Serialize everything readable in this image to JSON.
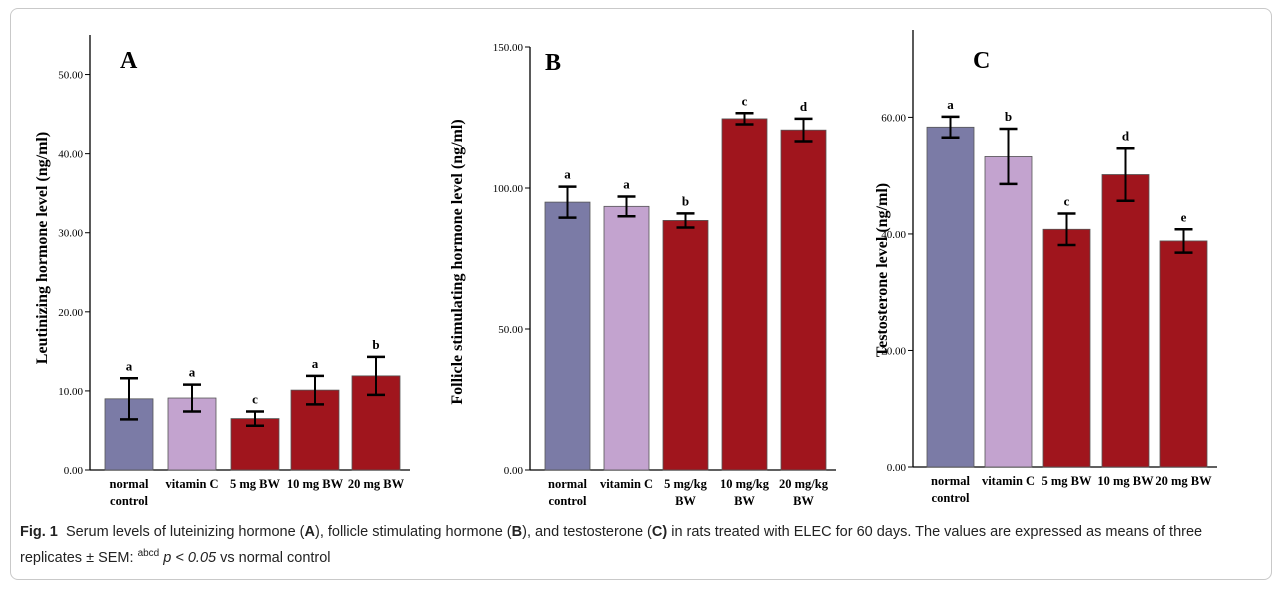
{
  "colors": {
    "normal_control": "#7b7ba6",
    "vitamin_c": "#c3a3cf",
    "treatment": "#a0151d"
  },
  "chart_data": [
    {
      "type": "bar",
      "panel": "A",
      "ylabel": "Leutinizing hormone level  (ng/ml)",
      "ylim": [
        0,
        55
      ],
      "yticks": [
        "0.00",
        "10.00",
        "20.00",
        "30.00",
        "40.00",
        "50.00"
      ],
      "ytick_values": [
        0,
        10,
        20,
        30,
        40,
        50
      ],
      "categories": [
        [
          "normal",
          "control"
        ],
        [
          "vitamin C"
        ],
        [
          "5 mg BW"
        ],
        [
          "10 mg BW"
        ],
        [
          "20 mg BW"
        ]
      ],
      "values": [
        9.0,
        9.1,
        6.5,
        10.1,
        11.9
      ],
      "errors": [
        2.6,
        1.7,
        0.9,
        1.8,
        2.4
      ],
      "letters": [
        "a",
        "a",
        "c",
        "a",
        "b"
      ],
      "color_keys": [
        "normal_control",
        "vitamin_c",
        "treatment",
        "treatment",
        "treatment"
      ]
    },
    {
      "type": "bar",
      "panel": "B",
      "ylabel": "Follicle stimulating hormone level (ng/ml)",
      "ylim": [
        0,
        150
      ],
      "yticks": [
        "0.00",
        "50.00",
        "100.00",
        "150.00"
      ],
      "ytick_values": [
        0,
        50,
        100,
        150
      ],
      "categories": [
        [
          "normal",
          "control"
        ],
        [
          "vitamin C"
        ],
        [
          "5 mg/kg",
          "BW"
        ],
        [
          "10 mg/kg",
          "BW"
        ],
        [
          "20 mg/kg",
          "BW"
        ]
      ],
      "values": [
        95.0,
        93.5,
        88.5,
        124.5,
        120.5
      ],
      "errors": [
        5.5,
        3.5,
        2.5,
        2.0,
        4.0
      ],
      "letters": [
        "a",
        "a",
        "b",
        "c",
        "d"
      ],
      "color_keys": [
        "normal_control",
        "vitamin_c",
        "treatment",
        "treatment",
        "treatment"
      ]
    },
    {
      "type": "bar",
      "panel": "C",
      "ylabel": "Testosterone level  (ng/ml)",
      "ylim": [
        0,
        75
      ],
      "yticks": [
        "0.00",
        "20.00",
        "40.00",
        "60.00"
      ],
      "ytick_values": [
        0,
        20,
        40,
        60
      ],
      "categories": [
        [
          "normal",
          "control"
        ],
        [
          "vitamin C"
        ],
        [
          "5 mg BW"
        ],
        [
          "10 mg BW"
        ],
        [
          "20 mg BW"
        ]
      ],
      "values": [
        58.3,
        53.3,
        40.8,
        50.2,
        38.8
      ],
      "errors": [
        1.8,
        4.7,
        2.7,
        4.5,
        2.0
      ],
      "letters": [
        "a",
        "b",
        "c",
        "d",
        "e"
      ],
      "color_keys": [
        "normal_control",
        "vitamin_c",
        "treatment",
        "treatment",
        "treatment"
      ]
    }
  ],
  "caption": {
    "fig_label": "Fig. 1",
    "text_1": "Serum levels of luteinizing hormone (",
    "label_a": "A",
    "text_2": "), follicle stimulating hormone (",
    "label_b": "B",
    "text_3": "), and testosterone (",
    "label_c": "C)",
    "text_4": " in rats treated with ELEC for 60 days. The values are expressed as means of three replicates ± SEM: ",
    "superscript": "abcd",
    "p_value": "p < 0.05",
    "text_5": " vs normal control"
  }
}
